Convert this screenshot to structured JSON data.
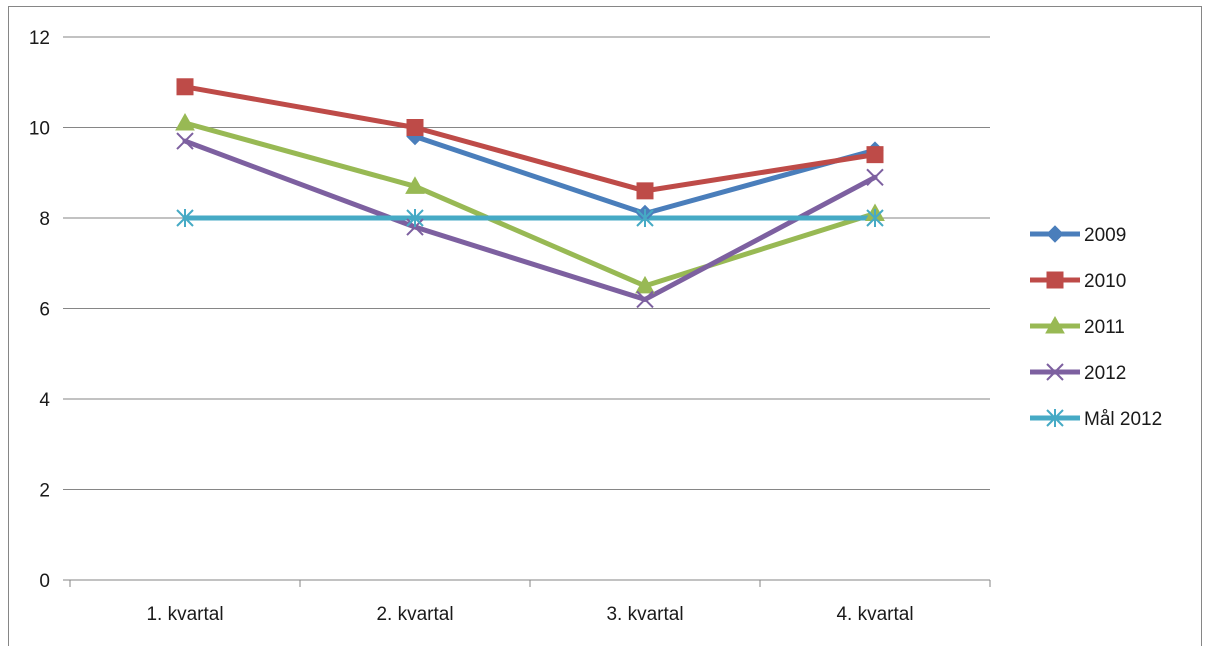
{
  "chart_data": {
    "type": "line",
    "title": "",
    "xlabel": "",
    "ylabel": "",
    "categories": [
      "1. kvartal",
      "2. kvartal",
      "3. kvartal",
      "4. kvartal"
    ],
    "ylim": [
      0,
      12
    ],
    "yticks": [
      "0",
      "2",
      "4",
      "6",
      "8",
      "10",
      "12"
    ],
    "grid": true,
    "legend_position": "right",
    "series": [
      {
        "name": "2009",
        "values": [
          null,
          9.8,
          8.1,
          9.5
        ],
        "color": "#4a7ebb",
        "marker": "diamond"
      },
      {
        "name": "2010",
        "values": [
          10.9,
          10.0,
          8.6,
          9.4
        ],
        "color": "#be4b48",
        "marker": "square"
      },
      {
        "name": "2011",
        "values": [
          10.1,
          8.7,
          6.5,
          8.1
        ],
        "color": "#98b954",
        "marker": "triangle"
      },
      {
        "name": "2012",
        "values": [
          9.7,
          7.8,
          6.2,
          8.9
        ],
        "color": "#7d60a0",
        "marker": "x"
      },
      {
        "name": "Mål 2012",
        "values": [
          8.0,
          8.0,
          8.0,
          8.0
        ],
        "color": "#46aac5",
        "marker": "star"
      }
    ]
  }
}
